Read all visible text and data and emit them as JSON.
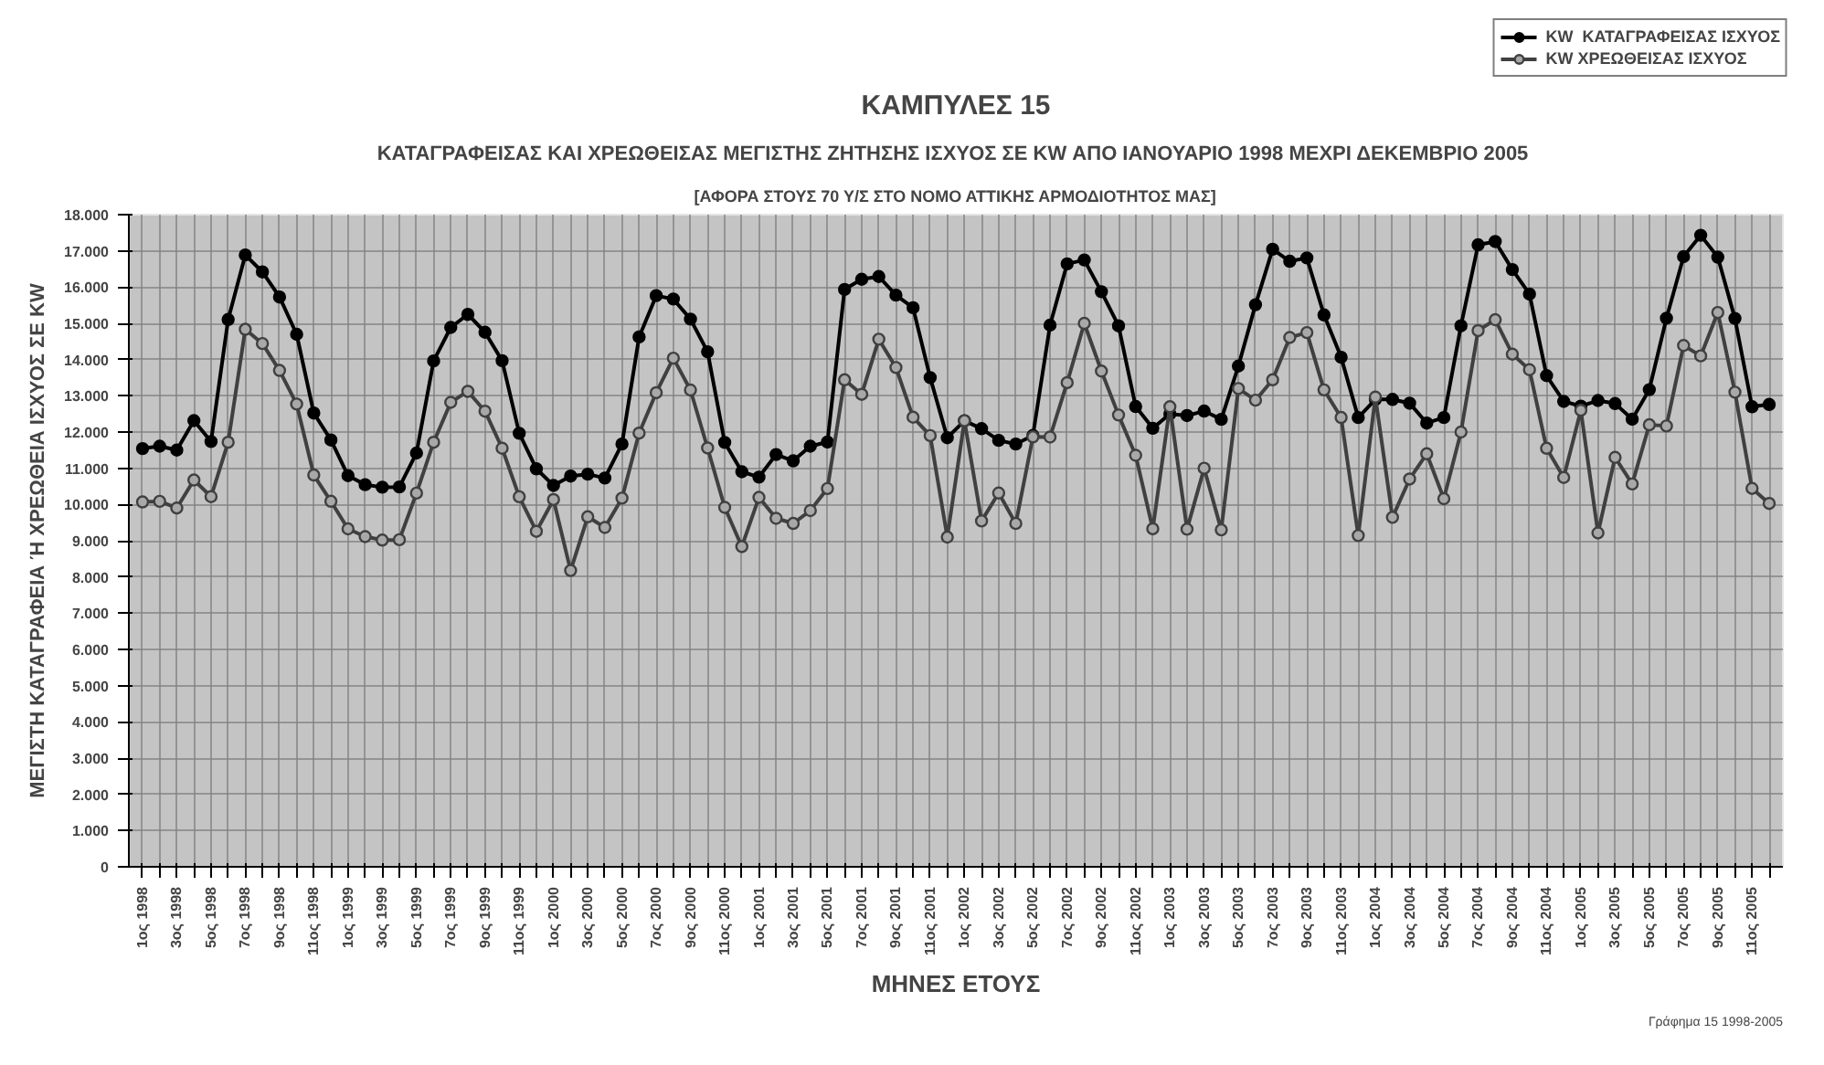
{
  "chart_data": {
    "type": "line",
    "title": "ΚΑΜΠΥΛΕΣ 15",
    "subtitle": "ΚΑΤΑΓΡΑΦΕΙΣΑΣ ΚΑΙ ΧΡΕΩΘΕΙΣΑΣ ΜΕΓΙΣΤΗΣ ΖΗΤΗΣΗΣ ΙΣΧΥΟΣ  ΣΕ KW ΑΠΟ ΙΑΝΟΥΑΡΙΟ 1998 ΜΕΧΡΙ ΔΕΚΕΜΒΡΙΟ 2005",
    "annotations": [
      "[ΑΦΟΡΑ ΣΤΟΥΣ 70 Υ/Σ ΣΤΟ ΝΟΜΟ ΑΤΤΙΚΗΣ ΑΡΜΟΔΙΟΤΗΤΟΣ ΜΑΣ]",
      "Γράφημα 15 1998-2005"
    ],
    "xlabel": "ΜΗΝΕΣ ΕΤΟΥΣ",
    "ylabel": "ΜΕΓΙΣΤΗ ΚΑΤΑΓΡΑΦΕΙΑ Ή ΧΡΕΩΘΕΙΑ ΙΣΧΥΟΣ ΣΕ KW",
    "categories": [
      "1ος 1998",
      null,
      "3ος 1998",
      null,
      "5ος 1998",
      null,
      "7ος 1998",
      null,
      "9ος 1998",
      null,
      "11ος 1998",
      null,
      "1ος 1999",
      null,
      "3ος 1999",
      null,
      "5ος 1999",
      null,
      "7ος 1999",
      null,
      "9ος 1999",
      null,
      "11ος 1999",
      null,
      "1ος 2000",
      null,
      "3ος 2000",
      null,
      "5ος 2000",
      null,
      "7ος 2000",
      null,
      "9ος 2000",
      null,
      "11ος 2000",
      null,
      "1ος 2001",
      null,
      "3ος 2001",
      null,
      "5ος 2001",
      null,
      "7ος 2001",
      null,
      "9ος 2001",
      null,
      "11ος 2001",
      null,
      "1ος 2002",
      null,
      "3ος 2002",
      null,
      "5ος 2002",
      null,
      "7ος 2002",
      null,
      "9ος 2002",
      null,
      "11ος 2002",
      null,
      "1ος 2003",
      null,
      "3ος 2003",
      null,
      "5ος 2003",
      null,
      "7ος 2003",
      null,
      "9ος 2003",
      null,
      "11ος 2003",
      null,
      "1ος 2004",
      null,
      "3ος 2004",
      null,
      "5ος 2004",
      null,
      "7ος 2004",
      null,
      "9ος 2004",
      null,
      "11ος 2004",
      null,
      "1ος 2005",
      null,
      "3ος 2005",
      null,
      "5ος 2005",
      null,
      "7ος 2005",
      null,
      "9ος 2005",
      null,
      "11ος 2005",
      null
    ],
    "series": [
      {
        "name": "KW  ΚΑΤΑΓΡΑΦΕΙΣΑΣ ΙΣΧΥΟΣ",
        "color": "#000000",
        "values": [
          11544,
          11609,
          11502,
          12315,
          11738,
          15106,
          16887,
          16419,
          15726,
          14698,
          12524,
          11781,
          10796,
          10547,
          10477,
          10484,
          11421,
          13963,
          14886,
          15247,
          14754,
          13970,
          11966,
          10984,
          10526,
          10785,
          10836,
          10730,
          11668,
          14624,
          15765,
          15670,
          15116,
          14216,
          11712,
          10904,
          10756,
          11380,
          11205,
          11609,
          11724,
          15937,
          16216,
          16292,
          15778,
          15431,
          13502,
          11842,
          12312,
          12093,
          11769,
          11668,
          11906,
          14949,
          16643,
          16749,
          15873,
          14932,
          12704,
          12105,
          12500,
          12455,
          12578,
          12350,
          13821,
          15514,
          17046,
          16713,
          16806,
          15232,
          14065,
          12400,
          12900,
          12900,
          12796,
          12247,
          12400,
          14932,
          17167,
          17258,
          16485,
          15808,
          13556,
          12845,
          12714,
          12869,
          12786,
          12354,
          13170,
          15140,
          16840,
          17430,
          16826,
          15136,
          12698,
          12761
        ]
      },
      {
        "name": "KW ΧΡΕΩΘΕΙΣΑΣ ΙΣΧΥΟΣ",
        "color": "#404040",
        "values": [
          10070,
          10086,
          9902,
          10675,
          10216,
          11718,
          14835,
          14441,
          13700,
          12771,
          10814,
          10089,
          9327,
          9113,
          9018,
          9028,
          10313,
          11718,
          12820,
          13123,
          12575,
          11553,
          10214,
          9260,
          10136,
          8178,
          9660,
          9366,
          10175,
          11970,
          13085,
          14040,
          13160,
          11560,
          9920,
          8838,
          10196,
          9618,
          9478,
          9832,
          10441,
          13442,
          13041,
          14561,
          13781,
          12409,
          11902,
          9100,
          12312,
          9545,
          10317,
          9475,
          11866,
          11861,
          13363,
          15000,
          13682,
          12470,
          11357,
          9329,
          12699,
          9318,
          11000,
          9300,
          13200,
          12878,
          13442,
          14610,
          14746,
          13163,
          12402,
          9143,
          12964,
          9645,
          10703,
          11400,
          10159,
          12000,
          14800,
          15100,
          14150,
          13721,
          11551,
          10745,
          12600,
          9215,
          11300,
          10567,
          12200,
          12167,
          14389,
          14101,
          15300,
          13100,
          10444,
          10029
        ]
      }
    ],
    "ylim": [
      0,
      18000
    ],
    "yticks": [
      {
        "value": 0,
        "label": "0"
      },
      {
        "value": 1000,
        "label": "1.000"
      },
      {
        "value": 2000,
        "label": "2.000"
      },
      {
        "value": 3000,
        "label": "3.000"
      },
      {
        "value": 4000,
        "label": "4.000"
      },
      {
        "value": 5000,
        "label": "5.000"
      },
      {
        "value": 6000,
        "label": "6.000"
      },
      {
        "value": 7000,
        "label": "7.000"
      },
      {
        "value": 8000,
        "label": "8.000"
      },
      {
        "value": 9000,
        "label": "9.000"
      },
      {
        "value": 10000,
        "label": "10.000"
      },
      {
        "value": 11000,
        "label": "11.000"
      },
      {
        "value": 12000,
        "label": "12.000"
      },
      {
        "value": 13000,
        "label": "13.000"
      },
      {
        "value": 14000,
        "label": "14.000"
      },
      {
        "value": 15000,
        "label": "15.000"
      },
      {
        "value": 16000,
        "label": "16.000"
      },
      {
        "value": 17000,
        "label": "17.000"
      },
      {
        "value": 18000,
        "label": "18.000"
      }
    ],
    "grid": true,
    "legend": "top right",
    "marker": "circle",
    "line_style": "solid"
  }
}
